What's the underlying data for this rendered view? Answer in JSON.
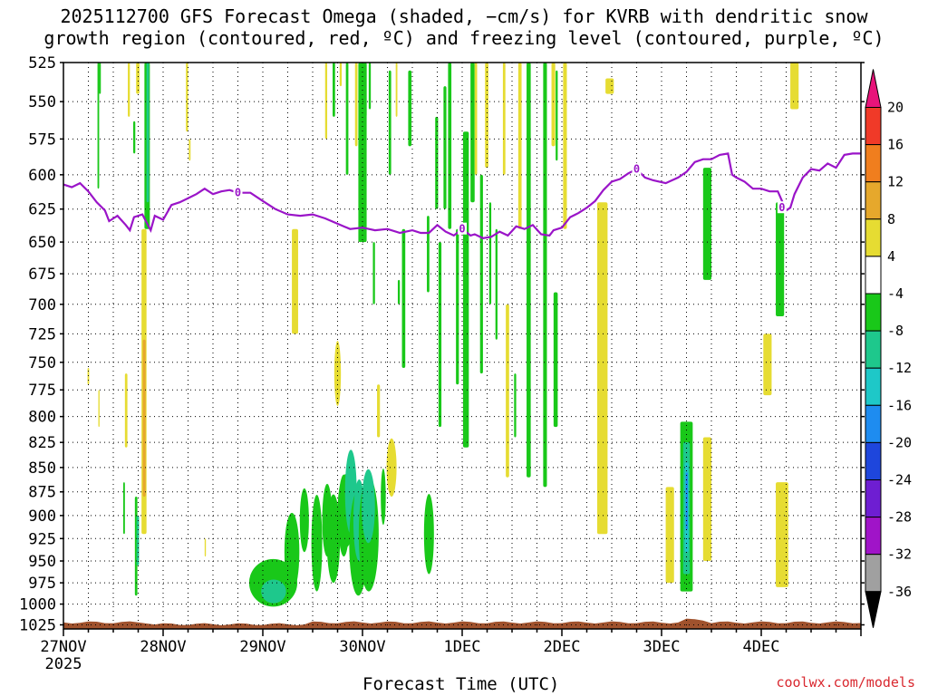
{
  "title_line1": "2025112700 GFS Forecast Omega (shaded, −cm/s) for KVRB with dendritic snow",
  "title_line2": "growth region (contoured, red, ºC) and freezing level (contoured, purple, ºC)",
  "credit": "coolwx.com/models",
  "chart_data": {
    "type": "heatmap",
    "xlabel": "Forecast Time (UTC)",
    "ylabel": "",
    "x_tick_labels": [
      "27NOV",
      "28NOV",
      "29NOV",
      "30NOV",
      "1DEC",
      "2DEC",
      "3DEC",
      "4DEC"
    ],
    "x_tick_sublabel": "2025",
    "x_range_hours": [
      0,
      192
    ],
    "y_tick_labels": [
      "525",
      "550",
      "575",
      "600",
      "625",
      "650",
      "675",
      "700",
      "725",
      "750",
      "775",
      "800",
      "825",
      "850",
      "875",
      "900",
      "925",
      "950",
      "975",
      "1000",
      "1025"
    ],
    "y_range_hPa": [
      525,
      1030
    ],
    "y_scale": "log-pressure",
    "grid": true,
    "colorbar": {
      "labels": [
        "20",
        "16",
        "12",
        "8",
        "4",
        "-4",
        "-8",
        "-12",
        "-16",
        "-20",
        "-24",
        "-28",
        "-32",
        "-36"
      ],
      "bins": [
        {
          "from": 20,
          "to": 24,
          "color": "#e8147a"
        },
        {
          "from": 16,
          "to": 20,
          "color": "#f03a28"
        },
        {
          "from": 12,
          "to": 16,
          "color": "#f07e1e"
        },
        {
          "from": 8,
          "to": 12,
          "color": "#e6a82c"
        },
        {
          "from": 4,
          "to": 8,
          "color": "#e6dc32"
        },
        {
          "from": -4,
          "to": 4,
          "color": "#ffffff"
        },
        {
          "from": -8,
          "to": -4,
          "color": "#19c819"
        },
        {
          "from": -12,
          "to": -8,
          "color": "#1ec88c"
        },
        {
          "from": -16,
          "to": -12,
          "color": "#1ec8c8"
        },
        {
          "from": -20,
          "to": -16,
          "color": "#1e8cf0"
        },
        {
          "from": -24,
          "to": -20,
          "color": "#1e46dc"
        },
        {
          "from": -28,
          "to": -24,
          "color": "#6e1ed2"
        },
        {
          "from": -32,
          "to": -28,
          "color": "#a014c8"
        },
        {
          "from": -36,
          "to": -32,
          "color": "#a0a0a0"
        },
        {
          "from": -40,
          "to": -36,
          "color": "#000000"
        }
      ]
    },
    "freezing_level": {
      "label": "0",
      "color": "#9a14c8",
      "points": [
        [
          0,
          607
        ],
        [
          2,
          609
        ],
        [
          4,
          606
        ],
        [
          6,
          612
        ],
        [
          8,
          620
        ],
        [
          10,
          626
        ],
        [
          11,
          634
        ],
        [
          13,
          630
        ],
        [
          15,
          637
        ],
        [
          16,
          641
        ],
        [
          17,
          631
        ],
        [
          19,
          629
        ],
        [
          21,
          641
        ],
        [
          22,
          630
        ],
        [
          24,
          633
        ],
        [
          26,
          622
        ],
        [
          28,
          620
        ],
        [
          30,
          617
        ],
        [
          32,
          614
        ],
        [
          34,
          610
        ],
        [
          36,
          614
        ],
        [
          38,
          612
        ],
        [
          40,
          611
        ],
        [
          42,
          613
        ],
        [
          45,
          613
        ],
        [
          48,
          619
        ],
        [
          51,
          625
        ],
        [
          54,
          629
        ],
        [
          57,
          630
        ],
        [
          60,
          629
        ],
        [
          63,
          632
        ],
        [
          66,
          636
        ],
        [
          69,
          640
        ],
        [
          72,
          639
        ],
        [
          75,
          641
        ],
        [
          78,
          640
        ],
        [
          81,
          643
        ],
        [
          84,
          641
        ],
        [
          86,
          643
        ],
        [
          88,
          643
        ],
        [
          90,
          637
        ],
        [
          92,
          642
        ],
        [
          94,
          645
        ],
        [
          96,
          640
        ],
        [
          98,
          645
        ],
        [
          99,
          644
        ],
        [
          101,
          647
        ],
        [
          103,
          646
        ],
        [
          105,
          642
        ],
        [
          107,
          645
        ],
        [
          109,
          638
        ],
        [
          111,
          640
        ],
        [
          113,
          637
        ],
        [
          115,
          644
        ],
        [
          117,
          645
        ],
        [
          118,
          641
        ],
        [
          120,
          639
        ],
        [
          122,
          631
        ],
        [
          124,
          628
        ],
        [
          126,
          624
        ],
        [
          128,
          619
        ],
        [
          130,
          611
        ],
        [
          132,
          605
        ],
        [
          134,
          603
        ],
        [
          136,
          599
        ],
        [
          138,
          596
        ],
        [
          140,
          602
        ],
        [
          142,
          604
        ],
        [
          145,
          606
        ],
        [
          148,
          602
        ],
        [
          150,
          598
        ],
        [
          152,
          591
        ],
        [
          154,
          589
        ],
        [
          156,
          589
        ],
        [
          158,
          586
        ],
        [
          160,
          585
        ],
        [
          161,
          600
        ],
        [
          162,
          602
        ],
        [
          164,
          605
        ],
        [
          166,
          610
        ],
        [
          168,
          610
        ],
        [
          170,
          612
        ],
        [
          172,
          612
        ],
        [
          174,
          626
        ],
        [
          175,
          624
        ],
        [
          176,
          614
        ],
        [
          178,
          602
        ],
        [
          180,
          596
        ],
        [
          182,
          597
        ],
        [
          184,
          592
        ],
        [
          186,
          595
        ],
        [
          188,
          586
        ],
        [
          190,
          585
        ],
        [
          192,
          585
        ]
      ]
    },
    "omega_cells": [
      {
        "t0": 8.2,
        "t1": 8.6,
        "p0": 525,
        "p1": 610,
        "v": -6
      },
      {
        "t0": 15.5,
        "t1": 16.0,
        "p0": 525,
        "p1": 560,
        "v": 5
      },
      {
        "t0": 16.8,
        "t1": 17.3,
        "p0": 563,
        "p1": 585,
        "v": -6
      },
      {
        "t0": 19.5,
        "t1": 20.8,
        "p0": 525,
        "p1": 640,
        "v": -6
      },
      {
        "t0": 20.0,
        "t1": 20.6,
        "p0": 525,
        "p1": 620,
        "v": -10
      },
      {
        "t0": 17.5,
        "t1": 18.3,
        "p0": 525,
        "p1": 545,
        "v": 5
      },
      {
        "t0": 29.5,
        "t1": 30.0,
        "p0": 525,
        "p1": 570,
        "v": 5
      },
      {
        "t0": 18.8,
        "t1": 20.0,
        "p0": 640,
        "p1": 920,
        "v": 5
      },
      {
        "t0": 19.1,
        "t1": 19.8,
        "p0": 730,
        "p1": 880,
        "v": 9
      },
      {
        "t0": 17.2,
        "t1": 17.8,
        "p0": 880,
        "p1": 990,
        "v": -6
      },
      {
        "t0": 17.6,
        "t1": 18.2,
        "p0": 900,
        "p1": 955,
        "v": -10
      },
      {
        "t0": 14.8,
        "t1": 15.4,
        "p0": 760,
        "p1": 830,
        "v": 5
      },
      {
        "t0": 5.8,
        "t1": 6.2,
        "p0": 755,
        "p1": 770,
        "v": 5
      },
      {
        "t0": 14.4,
        "t1": 14.8,
        "p0": 865,
        "p1": 920,
        "v": -6
      },
      {
        "t0": 8.4,
        "t1": 8.7,
        "p0": 775,
        "p1": 810,
        "v": 5
      },
      {
        "t0": 30.2,
        "t1": 30.6,
        "p0": 575,
        "p1": 590,
        "v": 5
      },
      {
        "t0": 34.0,
        "t1": 34.3,
        "p0": 925,
        "p1": 945,
        "v": 5
      },
      {
        "t0": 55.0,
        "t1": 56.5,
        "p0": 640,
        "p1": 725,
        "v": 5
      },
      {
        "t0": 63.0,
        "t1": 63.5,
        "p0": 525,
        "p1": 575,
        "v": 5
      },
      {
        "t0": 64.8,
        "t1": 65.4,
        "p0": 525,
        "p1": 560,
        "v": -6
      },
      {
        "t0": 66.5,
        "t1": 67.0,
        "p0": 525,
        "p1": 540,
        "v": 5
      },
      {
        "t0": 68.0,
        "t1": 68.6,
        "p0": 525,
        "p1": 600,
        "v": -6
      },
      {
        "t0": 70.2,
        "t1": 70.8,
        "p0": 525,
        "p1": 580,
        "v": 5
      },
      {
        "t0": 72.4,
        "t1": 73.0,
        "p0": 525,
        "p1": 560,
        "v": -6
      },
      {
        "t0": 73.5,
        "t1": 74.0,
        "p0": 525,
        "p1": 555,
        "v": -6
      },
      {
        "t0": 71.0,
        "t1": 73.0,
        "p0": 525,
        "p1": 650,
        "v": -6
      },
      {
        "t0": 75.5,
        "t1": 76.2,
        "p0": 770,
        "p1": 820,
        "v": 5
      },
      {
        "t0": 74.5,
        "t1": 75.0,
        "p0": 650,
        "p1": 700,
        "v": -6
      },
      {
        "t0": 78.3,
        "t1": 78.9,
        "p0": 530,
        "p1": 600,
        "v": -6
      },
      {
        "t0": 80.0,
        "t1": 80.4,
        "p0": 525,
        "p1": 560,
        "v": 5
      },
      {
        "t0": 80.5,
        "t1": 81.0,
        "p0": 680,
        "p1": 700,
        "v": -6
      },
      {
        "t0": 81.5,
        "t1": 82.3,
        "p0": 640,
        "p1": 755,
        "v": -6
      },
      {
        "t0": 83.0,
        "t1": 83.8,
        "p0": 530,
        "p1": 580,
        "v": -6
      },
      {
        "t0": 87.5,
        "t1": 88.1,
        "p0": 630,
        "p1": 690,
        "v": -6
      },
      {
        "t0": 89.5,
        "t1": 90.2,
        "p0": 560,
        "p1": 625,
        "v": -6
      },
      {
        "t0": 90.3,
        "t1": 91.0,
        "p0": 650,
        "p1": 810,
        "v": -6
      },
      {
        "t0": 91.5,
        "t1": 92.2,
        "p0": 540,
        "p1": 625,
        "v": -6
      },
      {
        "t0": 92.6,
        "t1": 93.4,
        "p0": 525,
        "p1": 640,
        "v": -6
      },
      {
        "t0": 94.5,
        "t1": 95.2,
        "p0": 640,
        "p1": 770,
        "v": -6
      },
      {
        "t0": 96.2,
        "t1": 97.6,
        "p0": 570,
        "p1": 830,
        "v": -6
      },
      {
        "t0": 98.0,
        "t1": 99.0,
        "p0": 525,
        "p1": 620,
        "v": -6
      },
      {
        "t0": 99.0,
        "t1": 99.6,
        "p0": 525,
        "p1": 600,
        "v": 5
      },
      {
        "t0": 100.3,
        "t1": 101.0,
        "p0": 600,
        "p1": 760,
        "v": -6
      },
      {
        "t0": 101.5,
        "t1": 102.3,
        "p0": 525,
        "p1": 595,
        "v": 5
      },
      {
        "t0": 102.5,
        "t1": 103.0,
        "p0": 620,
        "p1": 700,
        "v": -6
      },
      {
        "t0": 104.0,
        "t1": 104.5,
        "p0": 640,
        "p1": 730,
        "v": -6
      },
      {
        "t0": 105.8,
        "t1": 106.4,
        "p0": 525,
        "p1": 600,
        "v": 5
      },
      {
        "t0": 106.5,
        "t1": 107.3,
        "p0": 700,
        "p1": 860,
        "v": 5
      },
      {
        "t0": 108.5,
        "t1": 109.0,
        "p0": 760,
        "p1": 820,
        "v": -6
      },
      {
        "t0": 109.5,
        "t1": 110.3,
        "p0": 525,
        "p1": 640,
        "v": 5
      },
      {
        "t0": 111.5,
        "t1": 112.5,
        "p0": 525,
        "p1": 860,
        "v": -6
      },
      {
        "t0": 115.5,
        "t1": 116.4,
        "p0": 525,
        "p1": 870,
        "v": -6
      },
      {
        "t0": 117.5,
        "t1": 118.4,
        "p0": 525,
        "p1": 580,
        "v": 5
      },
      {
        "t0": 118.5,
        "t1": 119.0,
        "p0": 530,
        "p1": 590,
        "v": -6
      },
      {
        "t0": 120.3,
        "t1": 121.2,
        "p0": 525,
        "p1": 640,
        "v": 5
      },
      {
        "t0": 118.0,
        "t1": 119.0,
        "p0": 690,
        "p1": 810,
        "v": -6
      },
      {
        "t0": 128.5,
        "t1": 131.0,
        "p0": 620,
        "p1": 920,
        "v": 5
      },
      {
        "t0": 130.5,
        "t1": 132.5,
        "p0": 535,
        "p1": 545,
        "v": 5
      },
      {
        "t0": 145.0,
        "t1": 147.0,
        "p0": 870,
        "p1": 975,
        "v": 5
      },
      {
        "t0": 148.5,
        "t1": 151.5,
        "p0": 805,
        "p1": 985,
        "v": -6
      },
      {
        "t0": 149.2,
        "t1": 150.8,
        "p0": 825,
        "p1": 965,
        "v": -10
      },
      {
        "t0": 149.6,
        "t1": 150.5,
        "p0": 845,
        "p1": 940,
        "v": -14
      },
      {
        "t0": 149.8,
        "t1": 150.3,
        "p0": 855,
        "p1": 915,
        "v": -18
      },
      {
        "t0": 154.0,
        "t1": 156.0,
        "p0": 820,
        "p1": 950,
        "v": 5
      },
      {
        "t0": 154.0,
        "t1": 156.0,
        "p0": 595,
        "p1": 680,
        "v": -6
      },
      {
        "t0": 168.5,
        "t1": 170.5,
        "p0": 725,
        "p1": 780,
        "v": 5
      },
      {
        "t0": 171.5,
        "t1": 173.5,
        "p0": 620,
        "p1": 710,
        "v": -6
      },
      {
        "t0": 171.5,
        "t1": 174.5,
        "p0": 865,
        "p1": 980,
        "v": 5
      },
      {
        "t0": 175.0,
        "t1": 177.0,
        "p0": 525,
        "p1": 555,
        "v": 5
      },
      {
        "t0": 8.6,
        "t1": 9.0,
        "p0": 525,
        "p1": 545,
        "v": -6
      }
    ],
    "omega_blobs": [
      {
        "t": 50.5,
        "p": 975,
        "rw": 5.8,
        "rh": 28,
        "v": -6
      },
      {
        "t": 50.6,
        "p": 985,
        "rw": 3.0,
        "rh": 14,
        "v": -10
      },
      {
        "t": 55.0,
        "p": 940,
        "rw": 1.8,
        "rh": 45,
        "v": -6
      },
      {
        "t": 58.0,
        "p": 905,
        "rw": 1.1,
        "rh": 35,
        "v": -6
      },
      {
        "t": 61.0,
        "p": 930,
        "rw": 1.3,
        "rh": 55,
        "v": -6
      },
      {
        "t": 63.5,
        "p": 905,
        "rw": 1.2,
        "rh": 40,
        "v": -6
      },
      {
        "t": 65.0,
        "p": 925,
        "rw": 1.6,
        "rh": 50,
        "v": -6
      },
      {
        "t": 67.5,
        "p": 900,
        "rw": 1.4,
        "rh": 45,
        "v": -6
      },
      {
        "t": 68.0,
        "p": 895,
        "rw": 2.0,
        "rh": 40,
        "v": -6
      },
      {
        "t": 69.2,
        "p": 875,
        "rw": 1.4,
        "rh": 45,
        "v": -10
      },
      {
        "t": 71.0,
        "p": 930,
        "rw": 2.2,
        "rh": 60,
        "v": -6
      },
      {
        "t": 71.2,
        "p": 905,
        "rw": 1.4,
        "rh": 45,
        "v": -10
      },
      {
        "t": 73.5,
        "p": 920,
        "rw": 2.4,
        "rh": 65,
        "v": -6
      },
      {
        "t": 73.4,
        "p": 890,
        "rw": 1.6,
        "rh": 40,
        "v": -10
      },
      {
        "t": 66.0,
        "p": 760,
        "rw": 0.8,
        "rh": 30,
        "v": 5
      },
      {
        "t": 79.0,
        "p": 850,
        "rw": 1.2,
        "rh": 30,
        "v": 5
      },
      {
        "t": 88.0,
        "p": 920,
        "rw": 1.2,
        "rh": 45,
        "v": -6
      },
      {
        "t": 77.0,
        "p": 880,
        "rw": 0.6,
        "rh": 30,
        "v": -6
      }
    ],
    "terrain": {
      "color": "#a0522d",
      "top_hPa": 1022
    }
  }
}
